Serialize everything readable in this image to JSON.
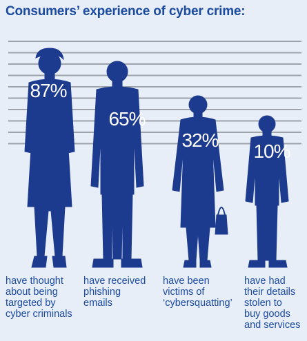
{
  "title": "Consumers’ experience of cyber crime:",
  "colors": {
    "figure": "#1c3b8e",
    "text": "#1b4ba0",
    "background": "#e8eef8",
    "gridline": "#9da2ab",
    "label": "#ffffff"
  },
  "chart_data": {
    "type": "bar",
    "title": "Consumers’ experience of cyber crime:",
    "categories": [
      "have thought about being targeted by cyber criminals",
      "have received phishing emails",
      "have been victims of ‘cybersquatting’",
      "have had their details stolen to buy goods and services"
    ],
    "values": [
      87,
      65,
      32,
      10
    ],
    "value_labels": [
      "87%",
      "65%",
      "32%",
      "10%"
    ],
    "captions": [
      "have thought\nabout being\ntargeted by\ncyber criminals",
      "have received\nphishing\nemails",
      "have been\nvictims of\n‘cybersquatting’",
      "have had\ntheir details\nstolen to\nbuy goods\nand services"
    ],
    "unit": "%",
    "bar_style": "human silhouettes",
    "grid": true
  }
}
